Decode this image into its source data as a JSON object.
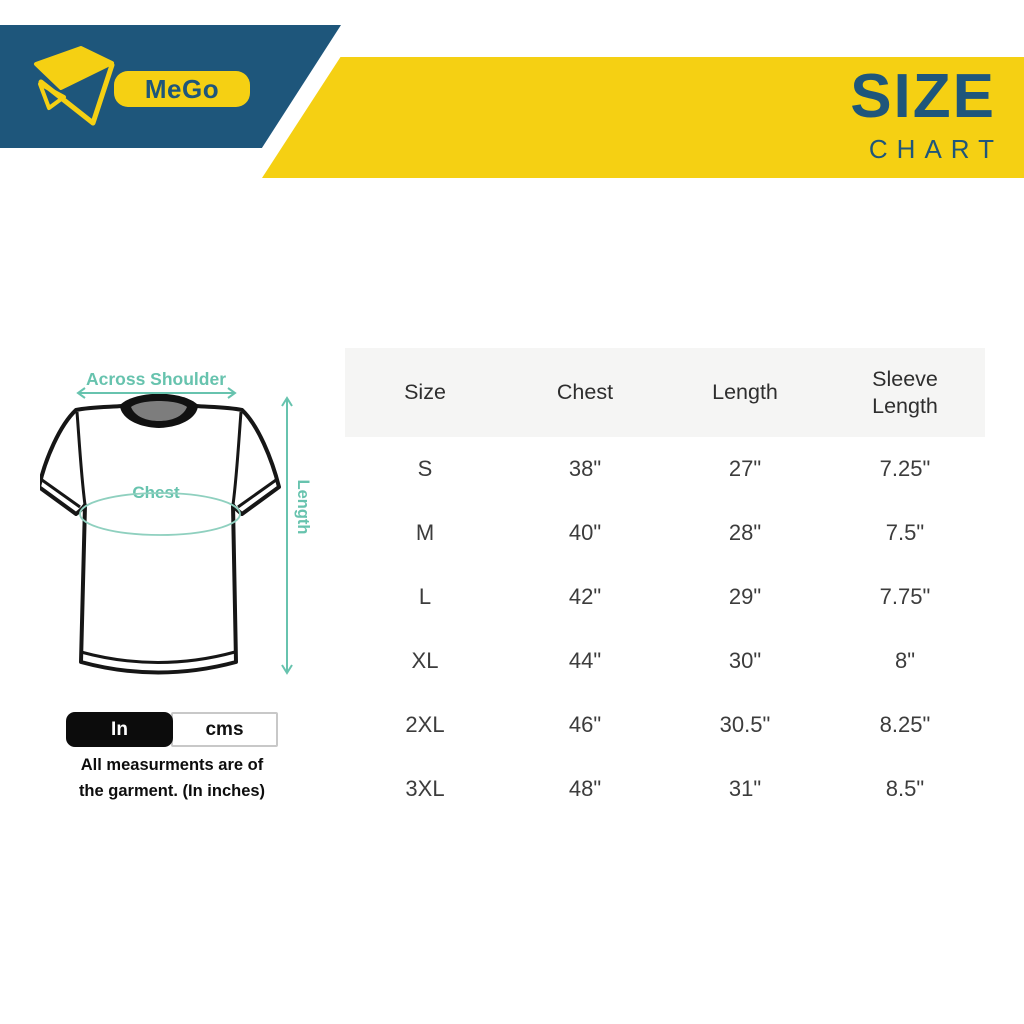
{
  "colors": {
    "blue": "#1E567B",
    "yellow": "#F5D013",
    "teal": "#67C3AE",
    "header_row_bg": "#f5f5f4",
    "toggle_selected_bg": "#0c0c0c"
  },
  "brand": {
    "name": "MeGo"
  },
  "header": {
    "title_line1": "SIZE",
    "title_line2": "CHART"
  },
  "diagram": {
    "across_shoulder_label": "Across Shoulder",
    "chest_label": "Chest",
    "length_label": "Length"
  },
  "unit_toggle": {
    "options": [
      {
        "label": "In",
        "selected": true
      },
      {
        "label": "cms",
        "selected": false
      }
    ]
  },
  "note": {
    "line1": "All measurments are of",
    "line2": "the garment. (In inches)"
  },
  "chart_data": {
    "type": "table",
    "title": "Size Chart",
    "columns": [
      "Size",
      "Chest",
      "Length",
      "Sleeve Length"
    ],
    "rows": [
      [
        "S",
        "38\"",
        "27\"",
        "7.25\""
      ],
      [
        "M",
        "40\"",
        "28\"",
        "7.5\""
      ],
      [
        "L",
        "42\"",
        "29\"",
        "7.75\""
      ],
      [
        "XL",
        "44\"",
        "30\"",
        "8\""
      ],
      [
        "2XL",
        "46\"",
        "30.5\"",
        "8.25\""
      ],
      [
        "3XL",
        "48\"",
        "31\"",
        "8.5\""
      ]
    ]
  }
}
